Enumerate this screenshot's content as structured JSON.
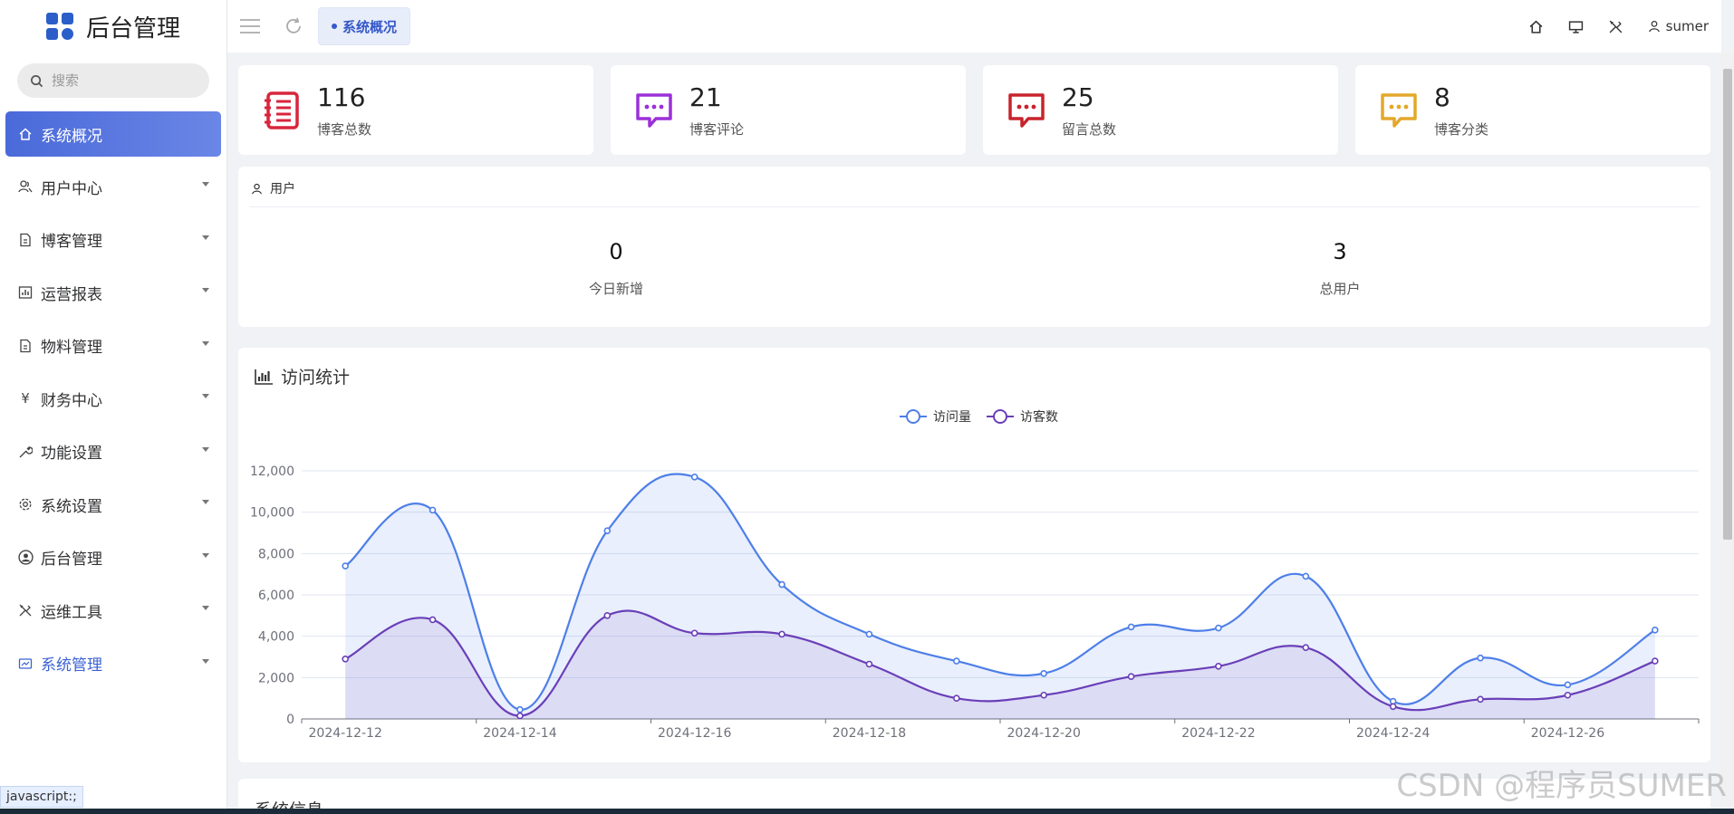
{
  "sidebar": {
    "title": "后台管理",
    "search_placeholder": "搜索",
    "items": [
      {
        "label": "系统概况",
        "icon": "home-icon"
      },
      {
        "label": "用户中心",
        "icon": "users-icon"
      },
      {
        "label": "博客管理",
        "icon": "document-icon"
      },
      {
        "label": "运营报表",
        "icon": "chart-icon"
      },
      {
        "label": "物料管理",
        "icon": "document-icon"
      },
      {
        "label": "财务中心",
        "icon": "yen-icon"
      },
      {
        "label": "功能设置",
        "icon": "wrench-icon"
      },
      {
        "label": "系统设置",
        "icon": "gear-icon"
      },
      {
        "label": "后台管理",
        "icon": "user-circle-icon"
      },
      {
        "label": "运维工具",
        "icon": "tools-icon"
      },
      {
        "label": "系统管理",
        "icon": "monitor-icon"
      }
    ]
  },
  "header": {
    "active_tab": "系统概况",
    "username": "sumer"
  },
  "stats": [
    {
      "value": "116",
      "label": "博客总数",
      "color": "#d8263c",
      "icon": "list-icon"
    },
    {
      "value": "21",
      "label": "博客评论",
      "color": "#9b30d9",
      "icon": "comment-icon"
    },
    {
      "value": "25",
      "label": "留言总数",
      "color": "#c8232c",
      "icon": "comment-icon"
    },
    {
      "value": "8",
      "label": "博客分类",
      "color": "#e3a82a",
      "icon": "comment-icon"
    }
  ],
  "users_panel": {
    "title": "用户",
    "today_new_value": "0",
    "today_new_label": "今日新增",
    "total_value": "3",
    "total_label": "总用户"
  },
  "chart_panel": {
    "title": "访问统计"
  },
  "bottom_panel": {
    "title": "系统信息"
  },
  "status_bar": "javascript:;",
  "watermark": "CSDN @程序员SUMER",
  "colors": {
    "accent": "#3558c9",
    "series1": "#4e7fe8",
    "series2": "#6a3fb8"
  },
  "chart_data": {
    "type": "area",
    "x": [
      "2024-12-12",
      "2024-12-13",
      "2024-12-14",
      "2024-12-15",
      "2024-12-16",
      "2024-12-17",
      "2024-12-18",
      "2024-12-19",
      "2024-12-20",
      "2024-12-21",
      "2024-12-22",
      "2024-12-23",
      "2024-12-24",
      "2024-12-25",
      "2024-12-26",
      "2024-12-27"
    ],
    "xticks": [
      "2024-12-12",
      "2024-12-14",
      "2024-12-16",
      "2024-12-18",
      "2024-12-20",
      "2024-12-22",
      "2024-12-24",
      "2024-12-26"
    ],
    "series": [
      {
        "name": "访问量",
        "values": [
          7400,
          10100,
          450,
          9100,
          11700,
          6500,
          4100,
          2800,
          2200,
          4450,
          4400,
          6900,
          850,
          2950,
          1650,
          4300
        ]
      },
      {
        "name": "访客数",
        "values": [
          2900,
          4800,
          150,
          5000,
          4150,
          4100,
          2650,
          1000,
          1150,
          2050,
          2550,
          3450,
          600,
          950,
          1150,
          2800
        ]
      }
    ],
    "ylim": [
      0,
      12000
    ],
    "yticks": [
      0,
      2000,
      4000,
      6000,
      8000,
      10000,
      12000
    ],
    "ytick_labels": [
      "0",
      "2,000",
      "4,000",
      "6,000",
      "8,000",
      "10,000",
      "12,000"
    ],
    "legend": "top-center",
    "grid": true
  }
}
